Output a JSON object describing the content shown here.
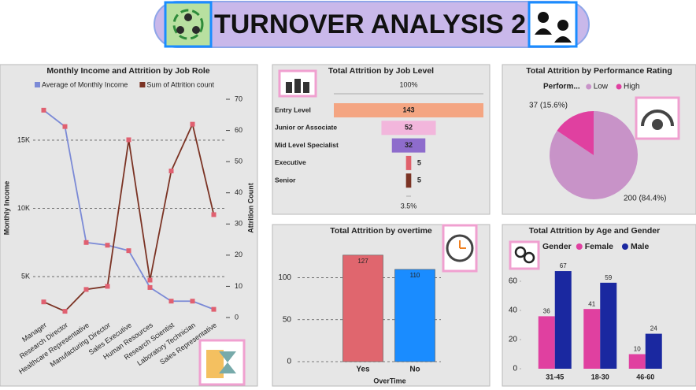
{
  "title": "TURNOVER ANALYSIS 2",
  "chart_data": [
    {
      "type": "line",
      "title": "Monthly Income and Attrition by Job Role",
      "categories": [
        "Manager",
        "Research Director",
        "Healthcare Representative",
        "Manufacturing Director",
        "Sales Executive",
        "Human Resources",
        "Research Scientist",
        "Laboratory Technician",
        "Sales Representative"
      ],
      "series": [
        {
          "name": "Average of Monthly Income",
          "color": "#7b8ad6",
          "values": [
            17200,
            16000,
            7500,
            7300,
            6900,
            4200,
            3200,
            3200,
            2600
          ]
        },
        {
          "name": "Sum of Attrition count",
          "color": "#7b3324",
          "axis": "y2",
          "values": [
            5,
            2,
            9,
            10,
            57,
            12,
            47,
            62,
            33
          ]
        }
      ],
      "ylabel": "Monthly Income",
      "y2label": "Attrition Count",
      "ylim": [
        2000,
        18000
      ],
      "yticks": [
        {
          "value": 5000,
          "label": "5K"
        },
        {
          "value": 10000,
          "label": "10K"
        },
        {
          "value": 15000,
          "label": "15K"
        }
      ],
      "y2lim": [
        0,
        70
      ],
      "y2ticks": [
        0,
        10,
        20,
        30,
        40,
        50,
        60,
        70
      ],
      "grid": true
    },
    {
      "type": "funnel",
      "title": "Total Attrition by Job Level",
      "categories": [
        "Entry Level",
        "Junior or Associate",
        "Mid Level Specialist",
        "Executive",
        "Senior"
      ],
      "values": [
        143,
        52,
        32,
        5,
        5
      ],
      "colors": [
        "#f4a582",
        "#f2b6dc",
        "#8e6ccc",
        "#e0606b",
        "#7b3324"
      ],
      "conversion_labels": [
        {
          "value": 100,
          "label": "100%"
        },
        {
          "value": 3.5,
          "label": "3.5%"
        }
      ]
    },
    {
      "type": "pie",
      "title": "Total Attrition by Performance Rating",
      "legend_title": "Perform...",
      "categories": [
        "Low",
        "High"
      ],
      "values": [
        200,
        37
      ],
      "value_labels": [
        "200 (84.4%)",
        "37 (15.6%)"
      ],
      "colors": [
        "#c893c8",
        "#e040a0"
      ]
    },
    {
      "type": "bar",
      "title": "Total Attrition by overtime",
      "xlabel": "OverTime",
      "categories": [
        "Yes",
        "No"
      ],
      "values": [
        127,
        110
      ],
      "colors": [
        "#e0666e",
        "#1a8cff"
      ],
      "ylim": [
        0,
        140
      ],
      "yticks": [
        0,
        50,
        100
      ],
      "grid": true
    },
    {
      "type": "grouped_bar",
      "title": "Total Attrition by Age and Gender",
      "legend_title": "Gender",
      "categories": [
        "31-45",
        "18-30",
        "46-60"
      ],
      "series": [
        {
          "name": "Female",
          "color": "#e040a0",
          "values": [
            36,
            41,
            10
          ]
        },
        {
          "name": "Male",
          "color": "#1a28a0",
          "values": [
            67,
            59,
            24
          ]
        }
      ],
      "ylim": [
        0,
        80
      ],
      "yticks": [
        0,
        20,
        40,
        60
      ],
      "grid": false
    }
  ]
}
